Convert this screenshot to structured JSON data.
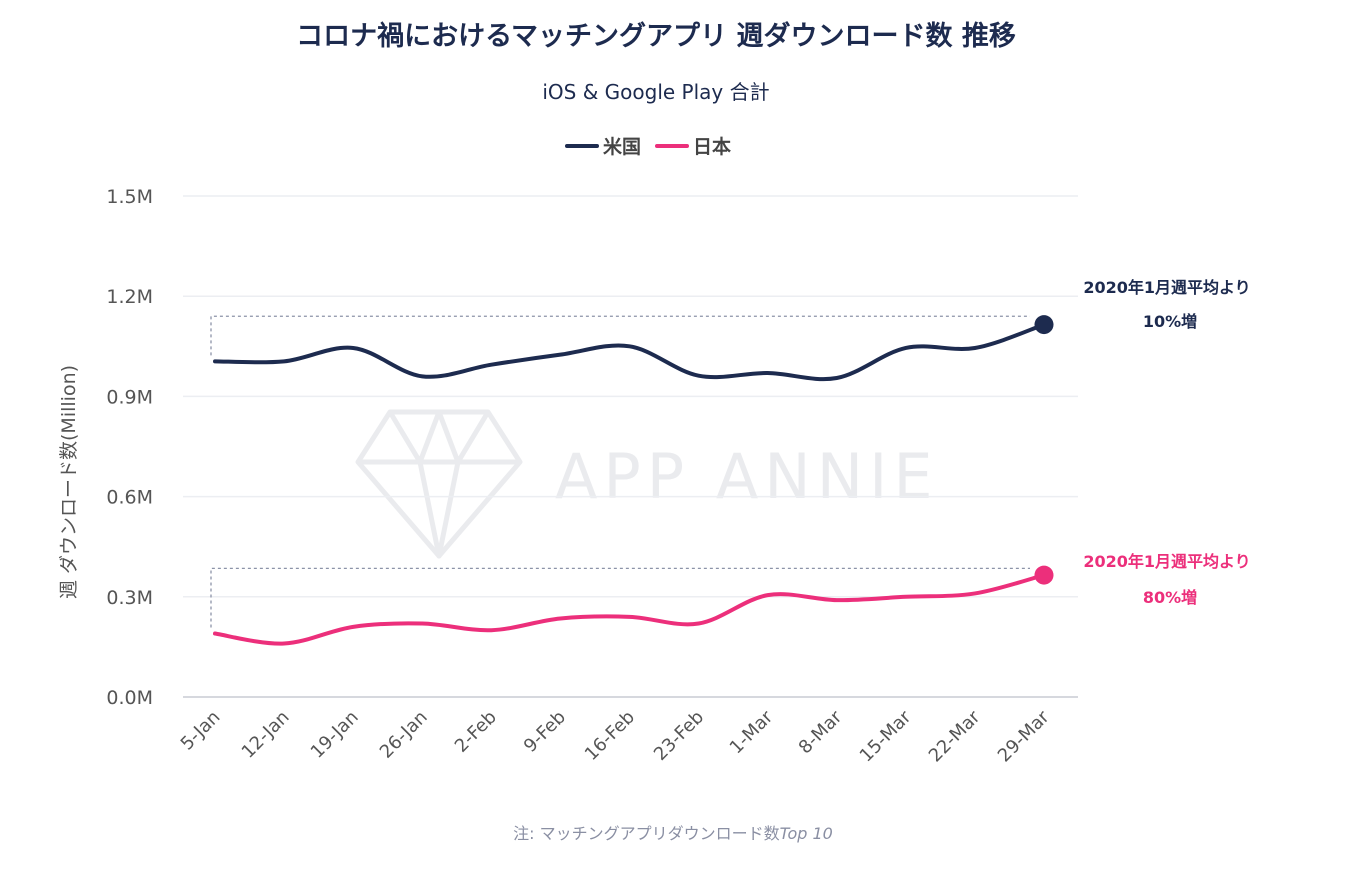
{
  "chart_data": {
    "type": "line",
    "title": "コロナ禍におけるマッチングアプリ 週ダウンロード数 推移",
    "subtitle": "iOS & Google Play 合計",
    "xlabel": "",
    "ylabel": "週 ダウンロード数(Million)",
    "ylim": [
      0,
      1.5
    ],
    "yticks": [
      0.0,
      0.3,
      0.6,
      0.9,
      1.2,
      1.5
    ],
    "ytick_labels": [
      "0.0M",
      "0.3M",
      "0.6M",
      "0.9M",
      "1.2M",
      "1.5M"
    ],
    "categories": [
      "5-Jan",
      "12-Jan",
      "19-Jan",
      "26-Jan",
      "2-Feb",
      "9-Feb",
      "16-Feb",
      "23-Feb",
      "1-Mar",
      "8-Mar",
      "15-Mar",
      "22-Mar",
      "29-Mar"
    ],
    "series": [
      {
        "name": "米国",
        "color": "#1d2b4f",
        "values": [
          1.005,
          1.005,
          1.045,
          0.96,
          0.995,
          1.025,
          1.05,
          0.962,
          0.97,
          0.955,
          1.045,
          1.045,
          1.115
        ],
        "reference_level": 1.14
      },
      {
        "name": "日本",
        "color": "#ec2f7b",
        "values": [
          0.19,
          0.16,
          0.21,
          0.22,
          0.2,
          0.235,
          0.24,
          0.22,
          0.305,
          0.29,
          0.3,
          0.31,
          0.365
        ],
        "reference_level": 0.385
      }
    ],
    "grid": true,
    "legend_position": "top-center",
    "annotations": [
      {
        "series": "米国",
        "line1": "2020年1月週平均より",
        "line2": "10%増",
        "color": "#1d2b4f"
      },
      {
        "series": "日本",
        "line1": "2020年1月週平均より",
        "line2": "80%増",
        "color": "#ec2f7b"
      }
    ]
  },
  "watermark": {
    "text": "APP ANNIE"
  },
  "note": {
    "prefix": "注: ",
    "text": "マッチングアプリダウンロード数",
    "suffix": "Top 10"
  }
}
